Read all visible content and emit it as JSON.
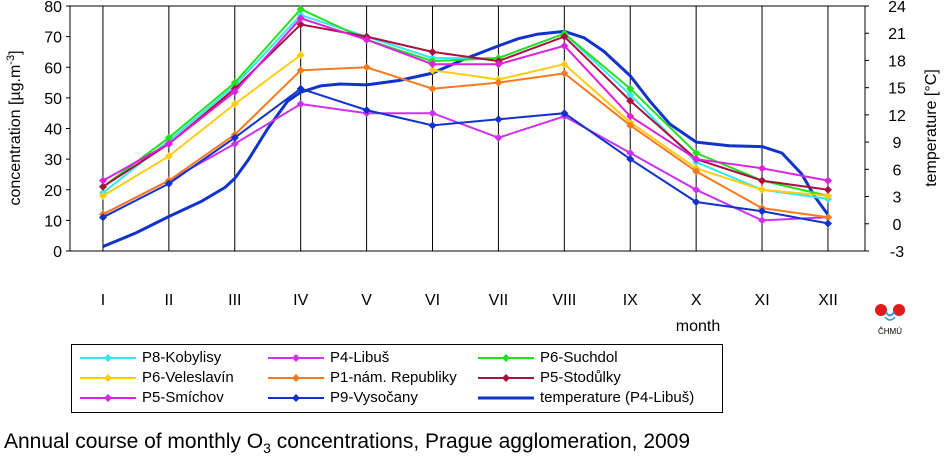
{
  "chart_data": {
    "type": "line",
    "categories": [
      "I",
      "II",
      "III",
      "IV",
      "V",
      "VI",
      "VII",
      "VIII",
      "IX",
      "X",
      "XI",
      "XII"
    ],
    "xlabel": "month",
    "ylabel_left_text": "concentration [µg.m",
    "ylabel_left_sup": "-3",
    "ylabel_left_end": "]",
    "ylabel_right": "temperature [°C]",
    "ylim": [
      0,
      80
    ],
    "y_ticks": [
      "0",
      "10",
      "20",
      "30",
      "40",
      "50",
      "60",
      "70",
      "80"
    ],
    "y2lim": [
      -3,
      24
    ],
    "y2_ticks": [
      "-3",
      "0",
      "3",
      "6",
      "9",
      "12",
      "15",
      "18",
      "21",
      "24"
    ],
    "grid": "vertical",
    "legend_position": "bottom",
    "series": [
      {
        "name": "P8-Kobylisy",
        "color": "#33e8f0",
        "values": [
          19,
          36,
          54,
          77,
          70,
          63,
          63,
          71,
          51,
          29,
          20,
          17
        ]
      },
      {
        "name": "P4-Libuš",
        "color": "#cc33ee",
        "values": [
          12,
          23,
          35,
          48,
          45,
          45,
          37,
          44,
          32,
          20,
          10,
          11
        ]
      },
      {
        "name": "P6-Suchdol",
        "color": "#22e022",
        "values": [
          21,
          37,
          55,
          79,
          69,
          62,
          63,
          71,
          53,
          32,
          23,
          18
        ]
      },
      {
        "name": "P6-Veleslavín",
        "color": "#ffcc11",
        "values": [
          18,
          31,
          48,
          64,
          null,
          59,
          56,
          61,
          42,
          27,
          20,
          18
        ]
      },
      {
        "name": "P1-nám. Republiky",
        "color": "#f57a1e",
        "values": [
          12,
          23,
          38,
          59,
          60,
          53,
          55,
          58,
          41,
          26,
          14,
          11
        ]
      },
      {
        "name": "P5-Stodůlky",
        "color": "#aa1040",
        "values": [
          21,
          35,
          53,
          74,
          70,
          65,
          62,
          70,
          49,
          30,
          23,
          20
        ]
      },
      {
        "name": "P5-Smíchov",
        "color": "#dd22dd",
        "values": [
          23,
          35,
          52,
          76,
          69,
          61,
          61,
          67,
          44,
          30,
          27,
          23
        ]
      },
      {
        "name": "P9-Vysočany",
        "color": "#1133cc",
        "values": [
          11,
          22,
          37,
          53,
          46,
          41,
          43,
          45,
          30,
          16,
          13,
          9
        ]
      }
    ],
    "temperature_series": {
      "name": "temperature (P4-Libuš)",
      "color": "#1133cc",
      "x": [
        1,
        1.5,
        2,
        2.5,
        2.85,
        3,
        3.2,
        3.5,
        3.8,
        4,
        4.3,
        4.6,
        5,
        5.5,
        6,
        6.5,
        7,
        7.3,
        7.6,
        8,
        8.3,
        8.6,
        9,
        9.3,
        9.6,
        10,
        10.5,
        11,
        11.3,
        11.6,
        11.8,
        12
      ],
      "values": [
        -2.5,
        -1,
        0.8,
        2.5,
        4,
        5,
        7,
        10.5,
        13.5,
        14.5,
        15.2,
        15.4,
        15.3,
        15.8,
        16.6,
        18.2,
        19.6,
        20.4,
        20.9,
        21.2,
        20.5,
        19,
        16.3,
        13.5,
        11,
        9,
        8.6,
        8.5,
        7.8,
        5.5,
        3,
        1
      ]
    },
    "legend_layout": [
      [
        "P8-Kobylisy",
        "P4-Libuš",
        "P6-Suchdol"
      ],
      [
        "P6-Veleslavín",
        "P1-nám. Republiky",
        "P5-Stodůlky"
      ],
      [
        "P5-Smíchov",
        "P9-Vysočany",
        "temperature (P4-Libuš)"
      ]
    ]
  },
  "caption": {
    "pre": "Annual course of monthly O",
    "sub": "3",
    "post": " concentrations, Prague agglomeration, 2009"
  },
  "logo": {
    "text": "ČHMÚ",
    "colors": {
      "dots": "#e21a1a",
      "wave": "#3399dd"
    }
  }
}
